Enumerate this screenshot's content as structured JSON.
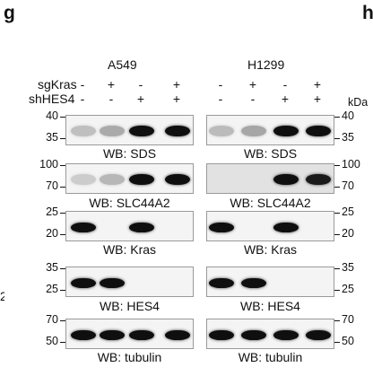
{
  "panel_letters": {
    "left": "g",
    "right": "h"
  },
  "cell_lines": [
    "A549",
    "H1299"
  ],
  "conditions": [
    {
      "label": "sgKras",
      "signs": [
        "-",
        "+",
        "-",
        "+"
      ]
    },
    {
      "label": "shHES4",
      "signs": [
        "-",
        "-",
        "+",
        "+"
      ]
    }
  ],
  "kda_label": "kDa",
  "side_mark": "2",
  "blots": [
    {
      "wb": "WB: SDS",
      "mw_top": "40",
      "mw_bottom": "35",
      "intensity": {
        "A549": [
          0.18,
          0.28,
          1.0,
          1.0
        ],
        "H1299": [
          0.2,
          0.3,
          1.0,
          1.0
        ]
      }
    },
    {
      "wb": "WB: SLC44A2",
      "mw_top": "100",
      "mw_bottom": "70",
      "intensity": {
        "A549": [
          0.12,
          0.22,
          1.0,
          1.0
        ],
        "H1299": [
          0.0,
          0.0,
          1.0,
          0.95
        ]
      }
    },
    {
      "wb": "WB: Kras",
      "mw_top": "25",
      "mw_bottom": "20",
      "intensity": {
        "A549": [
          1.0,
          0.0,
          1.0,
          0.0
        ],
        "H1299": [
          1.0,
          0.0,
          1.0,
          0.0
        ]
      }
    },
    {
      "wb": "WB: HES4",
      "mw_top": "35",
      "mw_bottom": "25",
      "intensity": {
        "A549": [
          1.0,
          1.0,
          0.0,
          0.0
        ],
        "H1299": [
          1.0,
          1.0,
          0.0,
          0.0
        ]
      }
    },
    {
      "wb": "WB: tubulin",
      "mw_top": "70",
      "mw_bottom": "50",
      "intensity": {
        "A549": [
          1.0,
          1.0,
          1.0,
          1.0
        ],
        "H1299": [
          1.0,
          1.0,
          1.0,
          1.0
        ]
      }
    }
  ]
}
